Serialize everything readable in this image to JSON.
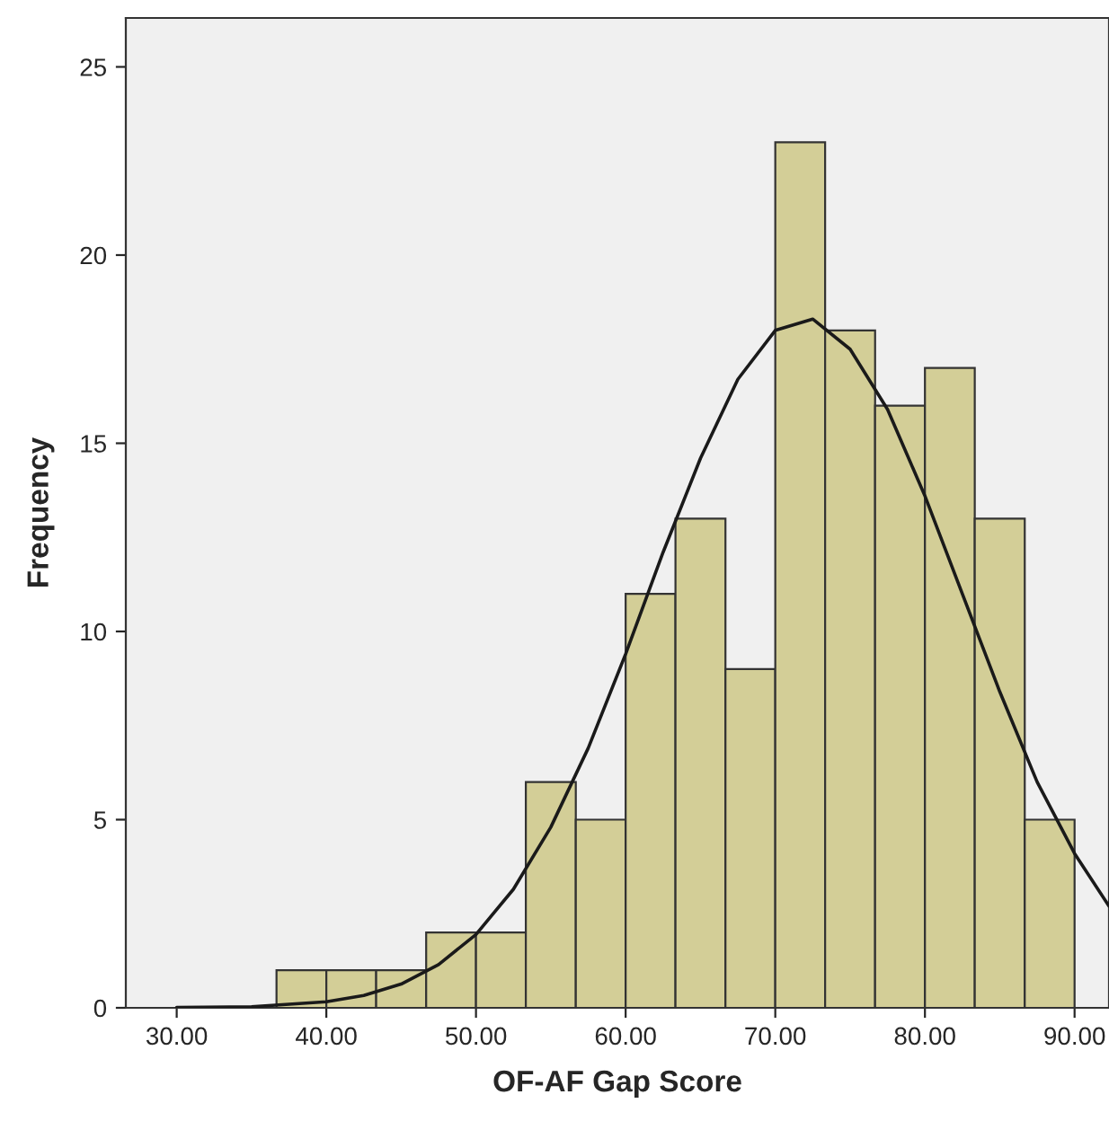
{
  "chart_data": {
    "type": "histogram",
    "xlabel": "OF-AF Gap Score",
    "ylabel": "Frequency",
    "bins": [
      36.67,
      40,
      43.33,
      46.67,
      50,
      53.33,
      56.67,
      60,
      63.33,
      66.67,
      70,
      73.33,
      76.67,
      80,
      83.33,
      86.67,
      90
    ],
    "values": [
      1,
      1,
      1,
      2,
      2,
      6,
      5,
      11,
      13,
      9,
      23,
      18,
      16,
      17,
      13,
      5
    ],
    "color": "#d3ce97",
    "series": [
      {
        "type": "line",
        "color": "#1a1a1a",
        "x": [
          30,
          35,
          40,
          42.5,
          45,
          47.5,
          50,
          52.5,
          55,
          57.5,
          60,
          62.5,
          65,
          67.5,
          70,
          72.5,
          75,
          77.5,
          80,
          82.5,
          85,
          87.5,
          90,
          92.3
        ],
        "values": [
          0.01,
          0.03,
          0.16,
          0.33,
          0.63,
          1.15,
          1.95,
          3.15,
          4.8,
          6.9,
          9.4,
          12.1,
          14.6,
          16.7,
          18.0,
          18.3,
          17.5,
          15.9,
          13.6,
          11.0,
          8.4,
          6.0,
          4.1,
          2.7
        ]
      }
    ],
    "xlim": [
      26.6,
      92.3
    ],
    "ylim": [
      0,
      26.3
    ],
    "xticks": [
      {
        "value": 30,
        "label": "30.00"
      },
      {
        "value": 40,
        "label": "40.00"
      },
      {
        "value": 50,
        "label": "50.00"
      },
      {
        "value": 60,
        "label": "60.00"
      },
      {
        "value": 70,
        "label": "70.00"
      },
      {
        "value": 80,
        "label": "80.00"
      },
      {
        "value": 90,
        "label": "90.00"
      }
    ],
    "yticks": [
      0,
      5,
      10,
      15,
      20,
      25
    ],
    "grid": false
  }
}
